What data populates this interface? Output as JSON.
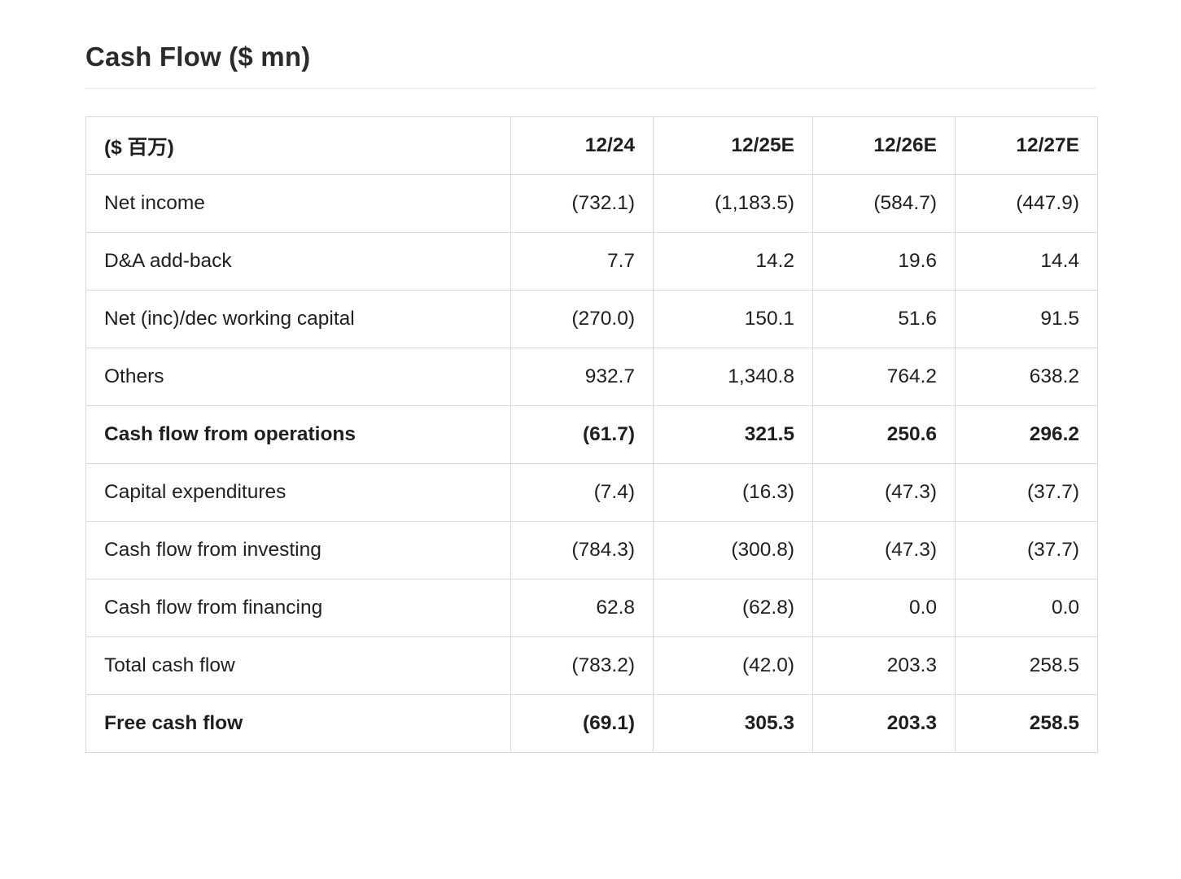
{
  "page": {
    "title": "Cash Flow ($ mn)"
  },
  "colors": {
    "background": "#ffffff",
    "text": "#1f1f1f",
    "title_text": "#2b2b2b",
    "table_border": "#d9d9d9",
    "divider": "#e7e7e7"
  },
  "table": {
    "header": [
      "($ 百万)",
      "12/24",
      "12/25E",
      "12/26E",
      "12/27E"
    ],
    "rows": [
      {
        "label": "Net income",
        "values": [
          "(732.1)",
          "(1,183.5)",
          "(584.7)",
          "(447.9)"
        ],
        "bold": false
      },
      {
        "label": "D&A add-back",
        "values": [
          "7.7",
          "14.2",
          "19.6",
          "14.4"
        ],
        "bold": false
      },
      {
        "label": "Net (inc)/dec working capital",
        "values": [
          "(270.0)",
          "150.1",
          "51.6",
          "91.5"
        ],
        "bold": false
      },
      {
        "label": "Others",
        "values": [
          "932.7",
          "1,340.8",
          "764.2",
          "638.2"
        ],
        "bold": false
      },
      {
        "label": "Cash flow from operations",
        "values": [
          "(61.7)",
          "321.5",
          "250.6",
          "296.2"
        ],
        "bold": true
      },
      {
        "label": "Capital expenditures",
        "values": [
          "(7.4)",
          "(16.3)",
          "(47.3)",
          "(37.7)"
        ],
        "bold": false
      },
      {
        "label": "Cash flow from investing",
        "values": [
          "(784.3)",
          "(300.8)",
          "(47.3)",
          "(37.7)"
        ],
        "bold": false
      },
      {
        "label": "Cash flow from financing",
        "values": [
          "62.8",
          "(62.8)",
          "0.0",
          "0.0"
        ],
        "bold": false
      },
      {
        "label": "Total cash flow",
        "values": [
          "(783.2)",
          "(42.0)",
          "203.3",
          "258.5"
        ],
        "bold": false
      },
      {
        "label": "Free cash flow",
        "values": [
          "(69.1)",
          "305.3",
          "203.3",
          "258.5"
        ],
        "bold": true
      }
    ]
  }
}
